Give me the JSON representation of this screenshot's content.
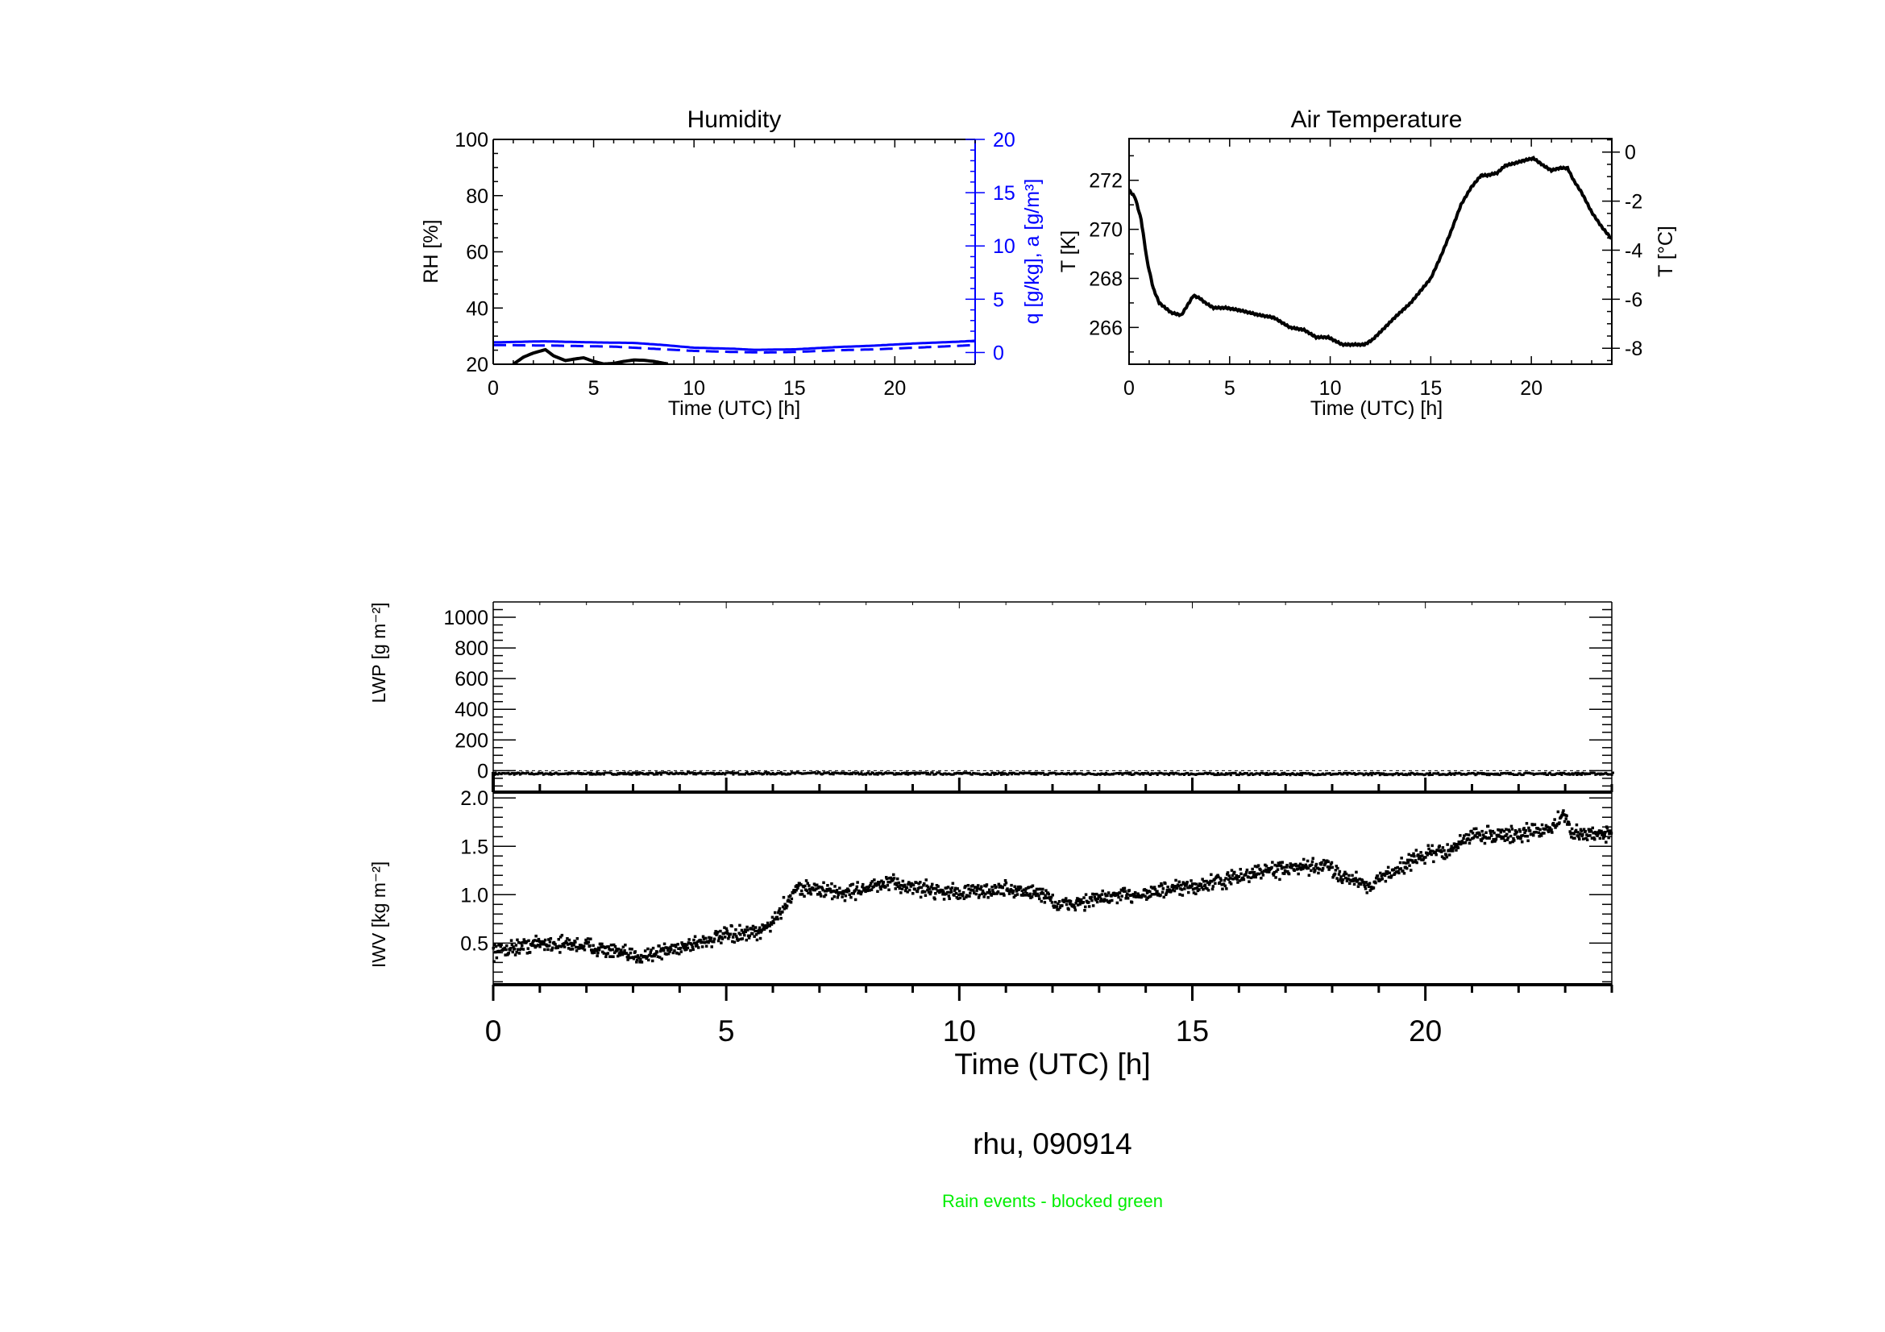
{
  "colors": {
    "axis": "#000000",
    "blue": "#0000ff",
    "green": "#00ee00",
    "background": "#ffffff"
  },
  "captions": {
    "station_date": "rhu, 090914",
    "rain_note": "Rain events - blocked green"
  },
  "chart_data": [
    {
      "id": "humidity",
      "type": "line",
      "title": "Humidity",
      "xlabel": "Time (UTC) [h]",
      "ylabel": "RH [%]",
      "ylabel_right": "q [g/kg], a [g/m³]",
      "xlim": [
        0,
        24
      ],
      "ylim": [
        20,
        100
      ],
      "ylim_right": [
        -1.1,
        20
      ],
      "xticks": [
        "0",
        "5",
        "10",
        "15",
        "20"
      ],
      "yticks": [
        "20",
        "40",
        "60",
        "80",
        "100"
      ],
      "yticks_right": [
        "0",
        "5",
        "10",
        "15",
        "20"
      ],
      "series": [
        {
          "name": "RH",
          "axis": "left",
          "style": "solid-thick",
          "color": "#000000",
          "x": [
            1.0,
            1.5,
            2.0,
            2.6,
            3.0,
            3.6,
            4.0,
            4.5,
            5.0,
            5.5,
            6.0,
            6.5,
            7.0,
            7.5,
            8.0,
            8.7
          ],
          "y": [
            20.0,
            22.5,
            24.0,
            25.2,
            23.0,
            21.3,
            21.8,
            22.3,
            21.0,
            20.1,
            20.3,
            21.0,
            21.5,
            21.4,
            21.0,
            20.1
          ]
        },
        {
          "name": "q",
          "axis": "right",
          "style": "solid",
          "color": "#0000ff",
          "x": [
            0,
            2.5,
            5,
            7,
            8.5,
            10,
            12,
            13,
            15,
            17,
            19,
            21,
            23,
            24
          ],
          "y": [
            0.95,
            1.05,
            0.95,
            0.9,
            0.7,
            0.45,
            0.35,
            0.25,
            0.3,
            0.5,
            0.65,
            0.85,
            1.0,
            1.1
          ]
        },
        {
          "name": "a",
          "axis": "right",
          "style": "dashed",
          "color": "#0000ff",
          "x": [
            0,
            3,
            6,
            8,
            10,
            12,
            13.5,
            15,
            17,
            19,
            21,
            24
          ],
          "y": [
            0.7,
            0.65,
            0.55,
            0.35,
            0.15,
            0.05,
            0.0,
            0.05,
            0.2,
            0.3,
            0.45,
            0.7
          ]
        }
      ]
    },
    {
      "id": "air-temperature",
      "type": "line",
      "title": "Air Temperature",
      "xlabel": "Time (UTC) [h]",
      "ylabel": "T [K]",
      "ylabel_right": "T [°C]",
      "xlim": [
        0,
        24
      ],
      "ylim": [
        264.5,
        273.7
      ],
      "xticks": [
        "0",
        "5",
        "10",
        "15",
        "20"
      ],
      "yticks": [
        "266",
        "268",
        "270",
        "272"
      ],
      "yticks_right": [
        "0",
        "-2",
        "-4",
        "-6",
        "-8"
      ],
      "series": [
        {
          "name": "T",
          "color": "#000000",
          "x": [
            0,
            0.3,
            0.6,
            0.9,
            1.2,
            1.5,
            1.8,
            2.1,
            2.6,
            2.9,
            3.2,
            3.5,
            3.8,
            4.2,
            4.8,
            5.5,
            6.5,
            7.2,
            8.0,
            8.7,
            9.3,
            9.9,
            10.6,
            11.2,
            11.7,
            12.1,
            12.6,
            13.2,
            14.0,
            15.0,
            15.5,
            16.0,
            16.5,
            17.0,
            17.5,
            17.8,
            18.3,
            18.7,
            19.2,
            19.6,
            20.1,
            20.6,
            21.0,
            21.4,
            21.8,
            22.1,
            22.5,
            23.0,
            23.5,
            24.0
          ],
          "y": [
            271.6,
            271.3,
            270.4,
            268.7,
            267.6,
            267.0,
            266.8,
            266.6,
            266.5,
            266.9,
            267.3,
            267.2,
            267.0,
            266.8,
            266.8,
            266.7,
            266.5,
            266.4,
            266.0,
            265.9,
            265.6,
            265.6,
            265.3,
            265.3,
            265.3,
            265.5,
            265.9,
            266.4,
            267.0,
            268.0,
            268.9,
            269.9,
            271.0,
            271.7,
            272.2,
            272.2,
            272.3,
            272.6,
            272.7,
            272.8,
            272.9,
            272.6,
            272.4,
            272.5,
            272.5,
            272.0,
            271.5,
            270.7,
            270.1,
            269.6
          ]
        }
      ]
    },
    {
      "id": "lwp",
      "type": "scatter",
      "ylabel": "LWP [g m⁻²]",
      "xlim": [
        0,
        24
      ],
      "ylim": [
        -140,
        1100
      ],
      "yticks": [
        "0",
        "200",
        "400",
        "600",
        "800",
        "1000"
      ],
      "reference_line": {
        "y": 0,
        "style": "dotted"
      },
      "series": [
        {
          "name": "LWP",
          "color": "#000000",
          "x": [
            0,
            6,
            12,
            18,
            24
          ],
          "y": [
            -20,
            -18,
            -20,
            -22,
            -20
          ]
        }
      ]
    },
    {
      "id": "iwv",
      "type": "scatter",
      "xlabel": "Time (UTC) [h]",
      "ylabel": "IWV [kg m⁻²]",
      "xlim": [
        0,
        24
      ],
      "ylim": [
        0.07,
        2.06
      ],
      "xticks": [
        "0",
        "5",
        "10",
        "15",
        "20"
      ],
      "yticks": [
        "0.5",
        "1.0",
        "1.5",
        "2.0"
      ],
      "series": [
        {
          "name": "IWV",
          "color": "#000000",
          "x": [
            0,
            1,
            2,
            3,
            3.5,
            4.5,
            5.0,
            5.7,
            6.1,
            6.5,
            7.5,
            8.5,
            9,
            10,
            11,
            11.9,
            12.1,
            13,
            14,
            15,
            16,
            16.5,
            17.5,
            17.9,
            18.2,
            18.8,
            19.5,
            20,
            20.5,
            21,
            22,
            22.7,
            23.0,
            23.15,
            24
          ],
          "y": [
            0.42,
            0.5,
            0.48,
            0.36,
            0.4,
            0.52,
            0.58,
            0.6,
            0.78,
            1.08,
            1.02,
            1.12,
            1.08,
            1.02,
            1.06,
            1.0,
            0.88,
            0.96,
            1.02,
            1.08,
            1.18,
            1.25,
            1.28,
            1.3,
            1.2,
            1.1,
            1.3,
            1.42,
            1.45,
            1.62,
            1.62,
            1.7,
            1.82,
            1.62,
            1.64
          ],
          "noise": 0.06,
          "points_per_hour": 70
        }
      ]
    }
  ]
}
